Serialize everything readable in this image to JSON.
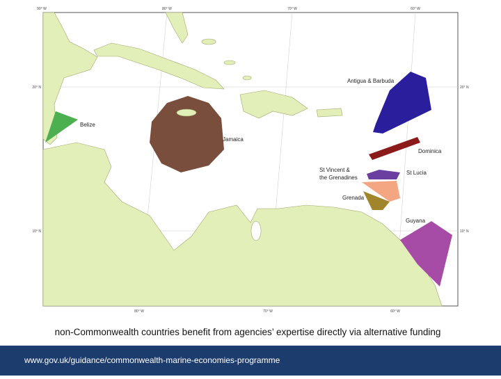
{
  "map": {
    "graticule": {
      "top": [
        "90° W",
        "80° W",
        "70° W",
        "60° W"
      ],
      "bottom": [
        "80° W",
        "70° W",
        "60° W"
      ],
      "left": [
        "20° N",
        "10° N"
      ],
      "right": [
        "20° N",
        "10° N"
      ]
    },
    "regions": [
      {
        "label": "Belize"
      },
      {
        "label": "Jamaica"
      },
      {
        "label": "Antigua & Barbuda"
      },
      {
        "label": "Dominica"
      },
      {
        "label_lines": [
          "St Vincent &",
          "the Grenadines"
        ]
      },
      {
        "label": "St Lucia"
      },
      {
        "label": "Grenada"
      },
      {
        "label": "Guyana"
      }
    ]
  },
  "caption": "non-Commonwealth countries benefit from agencies’ expertise directly via alternative funding",
  "footer": {
    "url": "www.gov.uk/guidance/commonwealth-marine-economies-programme"
  }
}
